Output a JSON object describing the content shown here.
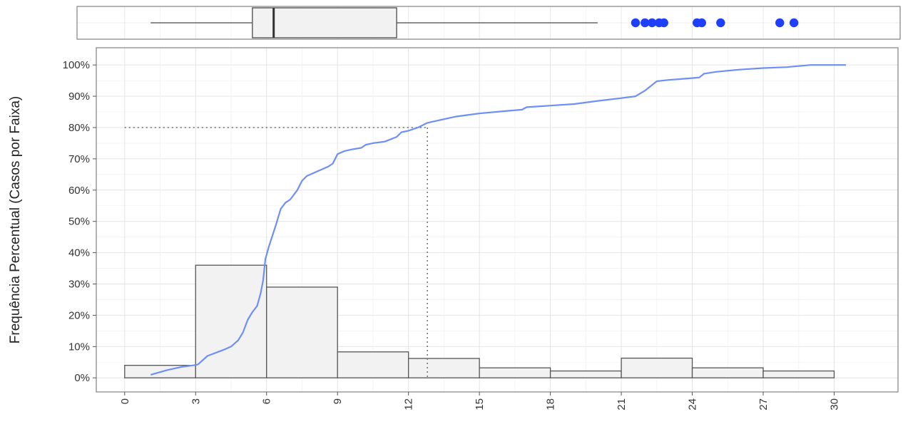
{
  "chart_data": {
    "type": "bar",
    "title": "",
    "ylabel": "Frequência Percentual (Casos por Faixa)",
    "xlabel": "",
    "x_ticks": [
      0,
      3,
      6,
      9,
      12,
      15,
      18,
      21,
      24,
      27,
      30
    ],
    "y_ticks": [
      0,
      10,
      20,
      30,
      40,
      50,
      60,
      70,
      80,
      90,
      100
    ],
    "y_tick_labels": [
      "0%",
      "10%",
      "20%",
      "30%",
      "40%",
      "50%",
      "60%",
      "70%",
      "80%",
      "90%",
      "100%"
    ],
    "xlim": [
      -1.2,
      32.7
    ],
    "ylim": [
      -4.5,
      105.5
    ],
    "grid": true,
    "histogram": {
      "bin_edges": [
        0,
        3,
        6,
        9,
        12,
        15,
        18,
        21,
        24,
        27,
        30
      ],
      "values": [
        4,
        36,
        29,
        8.3,
        6.2,
        3.2,
        2.2,
        6.3,
        3.2,
        2.2
      ]
    },
    "cumulative_line": {
      "color": "#6f8ff7",
      "x": [
        1.1,
        1.8,
        2.4,
        2.9,
        3.1,
        3.5,
        4.2,
        4.5,
        4.8,
        5.0,
        5.2,
        5.4,
        5.6,
        5.75,
        5.85,
        5.95,
        6.1,
        6.4,
        6.6,
        6.8,
        7.0,
        7.3,
        7.5,
        7.7,
        8.0,
        8.3,
        8.6,
        8.8,
        9.0,
        9.3,
        9.6,
        10.0,
        10.2,
        10.5,
        11.0,
        11.5,
        11.7,
        12.0,
        12.4,
        12.8,
        13.1,
        14.0,
        14.5,
        15.0,
        16.0,
        16.8,
        17.0,
        18.0,
        19.0,
        20.0,
        21.0,
        21.6,
        22.0,
        22.5,
        23.0,
        24.0,
        24.3,
        24.5,
        25.0,
        26.0,
        27.0,
        28.0,
        29.0,
        30.5
      ],
      "y": [
        1,
        2.5,
        3.5,
        4,
        4.3,
        7,
        9,
        10,
        12,
        14.5,
        18.5,
        21,
        23,
        27,
        31,
        38,
        42,
        49,
        54,
        56,
        57,
        60,
        63,
        64.5,
        65.5,
        66.5,
        67.5,
        68.5,
        71.5,
        72.5,
        73,
        73.5,
        74.5,
        75,
        75.5,
        77,
        78.5,
        79,
        80,
        81.5,
        82,
        83.5,
        84,
        84.5,
        85.2,
        85.7,
        86.5,
        87,
        87.5,
        88.5,
        89.4,
        90,
        91.8,
        94.8,
        95.2,
        95.8,
        96,
        97.2,
        97.8,
        98.5,
        99,
        99.3,
        100,
        100
      ]
    },
    "reference_lines": {
      "style": "dotted",
      "y_value": 80,
      "x_value": 12.8
    },
    "boxplot": {
      "min": 1.1,
      "q1": 5.4,
      "median": 6.3,
      "q3": 11.5,
      "max": 20.0,
      "outliers": [
        21.6,
        22.0,
        22.3,
        22.6,
        22.8,
        24.2,
        24.4,
        25.2,
        27.7,
        28.3
      ],
      "outlier_color": "#1f3fff"
    }
  }
}
